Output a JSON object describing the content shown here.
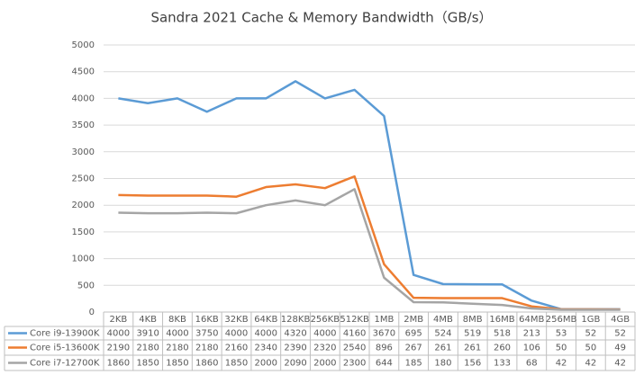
{
  "chart_data": {
    "type": "line",
    "title": "Sandra 2021 Cache & Memory Bandwidth（GB/s）",
    "categories": [
      "2KB",
      "4KB",
      "8KB",
      "16KB",
      "32KB",
      "64KB",
      "128KB",
      "256KB",
      "512KB",
      "1MB",
      "2MB",
      "4MB",
      "8MB",
      "16MB",
      "64MB",
      "256MB",
      "1GB",
      "4GB"
    ],
    "series": [
      {
        "name": "Core i9-13900K",
        "color": "#5b9bd5",
        "values": [
          4000,
          3910,
          4000,
          3750,
          4000,
          4000,
          4320,
          4000,
          4160,
          3670,
          695,
          524,
          519,
          518,
          213,
          53,
          52,
          52
        ]
      },
      {
        "name": "Core i5-13600K",
        "color": "#ed7d31",
        "values": [
          2190,
          2180,
          2180,
          2180,
          2160,
          2340,
          2390,
          2320,
          2540,
          896,
          267,
          261,
          261,
          260,
          106,
          50,
          50,
          49
        ]
      },
      {
        "name": "Core i7-12700K",
        "color": "#a5a5a5",
        "values": [
          1860,
          1850,
          1850,
          1860,
          1850,
          2000,
          2090,
          2000,
          2300,
          644,
          185,
          180,
          156,
          133,
          68,
          42,
          42,
          42
        ]
      }
    ],
    "ylim": [
      0,
      5000
    ],
    "yticks": [
      0,
      500,
      1000,
      1500,
      2000,
      2500,
      3000,
      3500,
      4000,
      4500,
      5000
    ],
    "grid": true
  }
}
